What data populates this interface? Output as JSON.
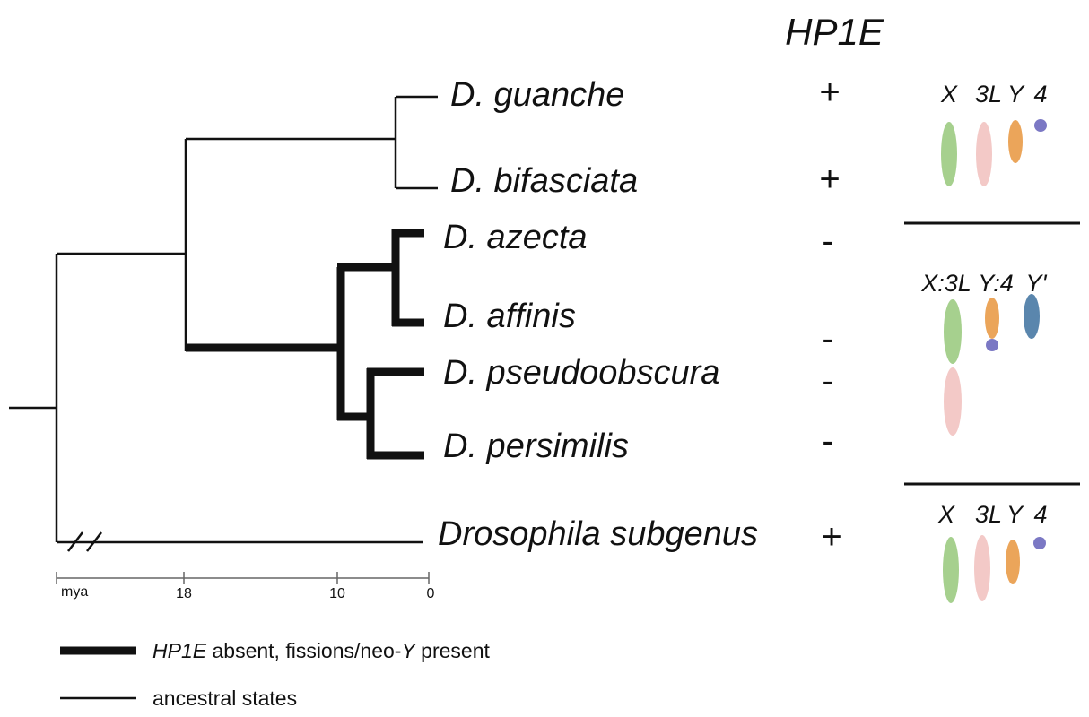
{
  "header": {
    "gene_title": "HP1E"
  },
  "species": [
    {
      "label": "D. guanche",
      "status": "+"
    },
    {
      "label": "D. bifasciata",
      "status": "+"
    },
    {
      "label": "D. azecta",
      "status": "-"
    },
    {
      "label": "D. affinis",
      "status": "-"
    },
    {
      "label": "D. pseudoobscura",
      "status": "-"
    },
    {
      "label": "D. persimilis",
      "status": "-"
    },
    {
      "label": "Drosophila subgenus",
      "status": "+"
    }
  ],
  "karyotypes": [
    {
      "labels": [
        "X",
        "3L",
        "Y",
        "4"
      ]
    },
    {
      "labels": [
        "X:3L",
        "Y:4",
        "Y'"
      ]
    },
    {
      "labels": [
        "X",
        "3L",
        "Y",
        "4"
      ]
    }
  ],
  "scale": {
    "unit": "mya",
    "ticks": [
      "18",
      "10",
      "0"
    ]
  },
  "legend": {
    "thick_italic": "HP1E",
    "thick_text_a": " absent, fissions/neo-",
    "thick_italic_b": "Y",
    "thick_text_b": " present",
    "thin": "ancestral states"
  },
  "colors": {
    "x_chrom": "#a6d08e",
    "l3_chrom": "#f3c9c7",
    "y_chrom": "#eba55a",
    "dot_chrom": "#7b78c4",
    "neo_y": "#5a86ad",
    "line": "#111111"
  }
}
